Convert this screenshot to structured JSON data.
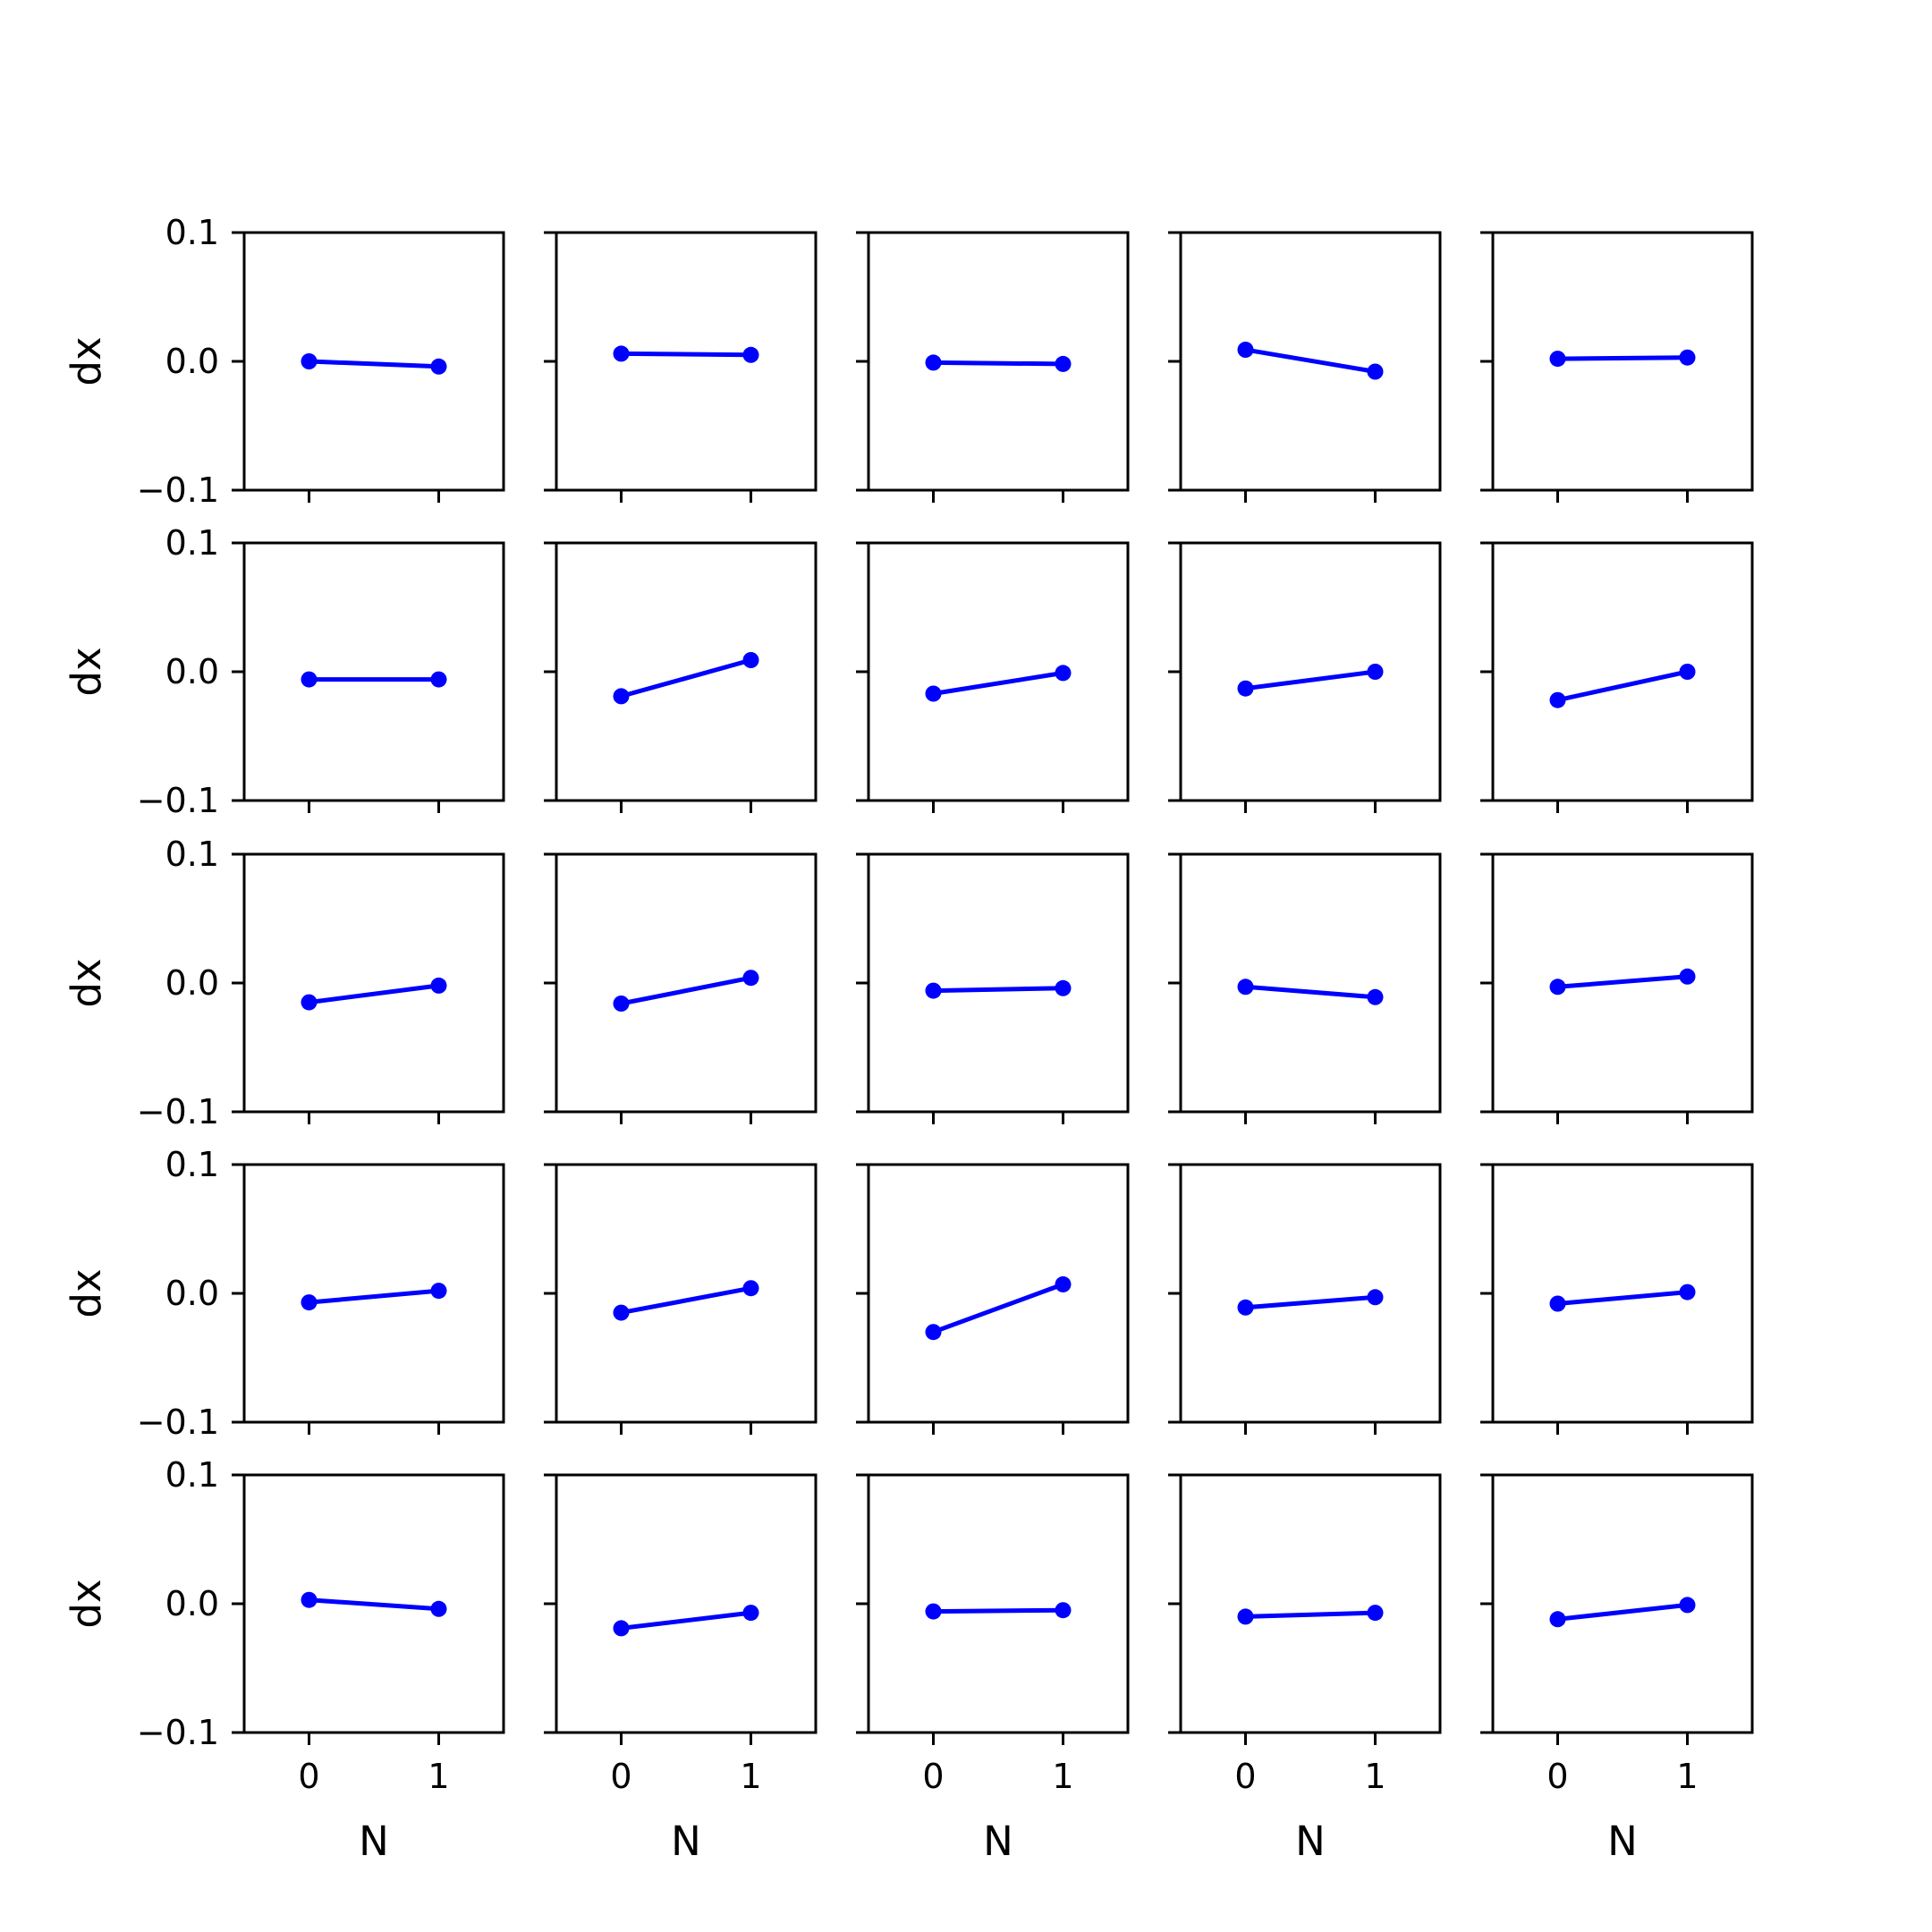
{
  "colors": {
    "series": "#0000ff",
    "axes": "#000000",
    "background": "#ffffff"
  },
  "chart_data": {
    "type": "line",
    "layout": "5x5 grid of small multiples, shared x and y axes",
    "xlabel": "N",
    "ylabel": "dx",
    "x_ticks": [
      0,
      1
    ],
    "x_tick_labels": [
      "0",
      "1"
    ],
    "y_ticks": [
      -0.1,
      0.0,
      0.1
    ],
    "y_tick_labels": [
      "−0.1",
      "0.0",
      "0.1"
    ],
    "xlim": [
      -0.5,
      1.5
    ],
    "ylim": [
      -0.1,
      0.1
    ],
    "grid": false,
    "legend": false,
    "x": [
      0,
      1
    ],
    "panels": [
      [
        [
          0.0,
          -0.004
        ],
        [
          0.006,
          0.005
        ],
        [
          -0.001,
          -0.002
        ],
        [
          0.009,
          -0.008
        ],
        [
          0.002,
          0.003
        ]
      ],
      [
        [
          -0.006,
          -0.006
        ],
        [
          -0.019,
          0.009
        ],
        [
          -0.017,
          -0.001
        ],
        [
          -0.013,
          0.0
        ],
        [
          -0.022,
          0.0
        ]
      ],
      [
        [
          -0.015,
          -0.002
        ],
        [
          -0.016,
          0.004
        ],
        [
          -0.006,
          -0.004
        ],
        [
          -0.003,
          -0.011
        ],
        [
          -0.003,
          0.005
        ]
      ],
      [
        [
          -0.007,
          0.002
        ],
        [
          -0.015,
          0.004
        ],
        [
          -0.03,
          0.007
        ],
        [
          -0.011,
          -0.003
        ],
        [
          -0.008,
          0.001
        ]
      ],
      [
        [
          0.003,
          -0.004
        ],
        [
          -0.019,
          -0.007
        ],
        [
          -0.006,
          -0.005
        ],
        [
          -0.01,
          -0.007
        ],
        [
          -0.012,
          -0.001
        ]
      ]
    ]
  }
}
